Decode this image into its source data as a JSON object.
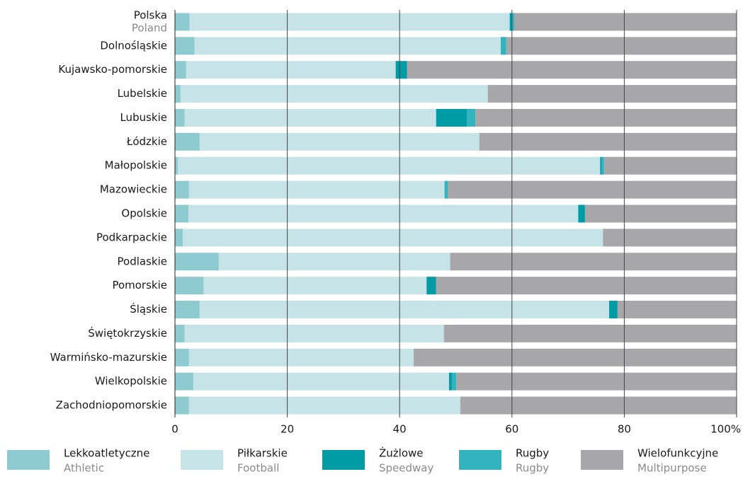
{
  "chart_data": {
    "type": "stacked-barh",
    "categories": [
      "Polska",
      "Dolnośląskie",
      "Kujawsko-pomorskie",
      "Lubelskie",
      "Lubuskie",
      "Łódzkie",
      "Małopolskie",
      "Mazowieckie",
      "Opolskie",
      "Podkarpackie",
      "Podlaskie",
      "Pomorskie",
      "Śląskie",
      "Świętokrzyskie",
      "Warmińsko-mazurskie",
      "Wielkopolskie",
      "Zachodniopomorskie"
    ],
    "category_translations": [
      "Poland",
      null,
      null,
      null,
      null,
      null,
      null,
      null,
      null,
      null,
      null,
      null,
      null,
      null,
      null,
      null,
      null
    ],
    "series": [
      {
        "name": "Lekkoatletyczne",
        "name_en": "Athletic",
        "color": "#8ecbd0",
        "values": [
          2.6,
          3.5,
          2.0,
          1.0,
          1.7,
          4.4,
          0.5,
          2.5,
          2.4,
          1.4,
          7.8,
          5.1,
          4.4,
          1.7,
          2.5,
          3.3,
          2.5
        ]
      },
      {
        "name": "Piłkarskie",
        "name_en": "Football",
        "color": "#c6e4e7",
        "values": [
          57.0,
          54.5,
          37.3,
          54.7,
          44.8,
          49.8,
          75.2,
          45.5,
          69.4,
          74.8,
          41.2,
          39.7,
          72.9,
          46.2,
          40.0,
          45.5,
          48.3
        ]
      },
      {
        "name": "Żużlowe",
        "name_en": "Speedway",
        "color": "#009ca6",
        "values": [
          0.3,
          0,
          2.0,
          0,
          5.5,
          0,
          0.3,
          0,
          1.2,
          0,
          0,
          1.7,
          1.5,
          0,
          0,
          0.5,
          0
        ]
      },
      {
        "name": "Rugby",
        "name_en": "Rugby",
        "color": "#33b3be",
        "values": [
          0.5,
          1.0,
          0,
          0,
          1.5,
          0,
          0.4,
          0.6,
          0,
          0,
          0,
          0,
          0,
          0,
          0,
          0.8,
          0
        ]
      },
      {
        "name": "Wielofunkcyjne",
        "name_en": "Multipurpose",
        "color": "#a7a7aa",
        "values": [
          39.6,
          41.0,
          58.7,
          44.3,
          46.5,
          45.8,
          23.6,
          51.4,
          27.0,
          23.8,
          51.0,
          53.5,
          21.2,
          52.1,
          57.5,
          49.9,
          49.2
        ]
      }
    ],
    "xlim": [
      0,
      100
    ],
    "xticks": [
      0,
      20,
      40,
      60,
      80,
      {
        "value": 100,
        "label": "100%"
      }
    ],
    "grid": true
  }
}
